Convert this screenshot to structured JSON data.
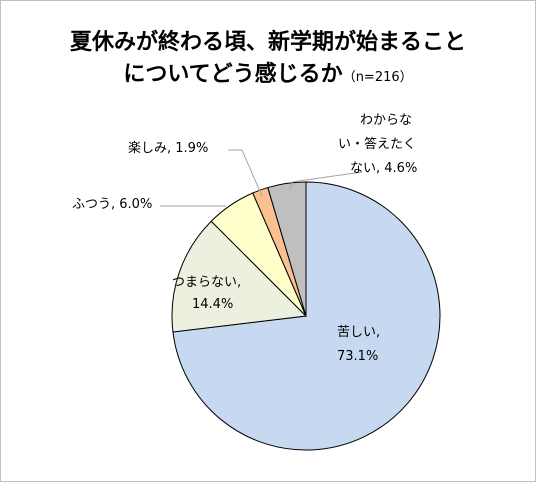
{
  "title_line1": "夏休みが終わる頃、新学期が始まること",
  "title_line2": "についてどう感じるか",
  "subtitle": "（n=216）",
  "chart_data": {
    "type": "pie",
    "title": "夏休みが終わる頃、新学期が始まることについてどう感じるか",
    "subtitle": "（n=216）",
    "unit": "%",
    "start": "12 o'clock",
    "direction": "clockwise",
    "slices": [
      {
        "label": "苦しい",
        "value": 73.1,
        "text": "73.1%",
        "color": "#c6d9f0"
      },
      {
        "label": "つまらない",
        "value": 14.4,
        "text": "14.4%",
        "color": "#ebf1de"
      },
      {
        "label": "ふつう",
        "value": 6.0,
        "text": "6.0%",
        "color": "#ffffcc"
      },
      {
        "label": "楽しみ",
        "value": 1.9,
        "text": "1.9%",
        "color": "#fac090"
      },
      {
        "label": "わからない・答えたくない",
        "value": 4.6,
        "text": "4.6%",
        "color": "#bfbfbf"
      }
    ]
  },
  "labels": {
    "s0_line1": "苦しい,",
    "s0_line2": "73.1%",
    "s1_line1": "つまらない,",
    "s1_line2": "14.4%",
    "s2_line1": "ふつう, 6.0%",
    "s3_line1": "楽しみ, 1.9%",
    "s4_line1": "わからな",
    "s4_line2": "い・答えたく",
    "s4_line3": "ない, 4.6%"
  }
}
